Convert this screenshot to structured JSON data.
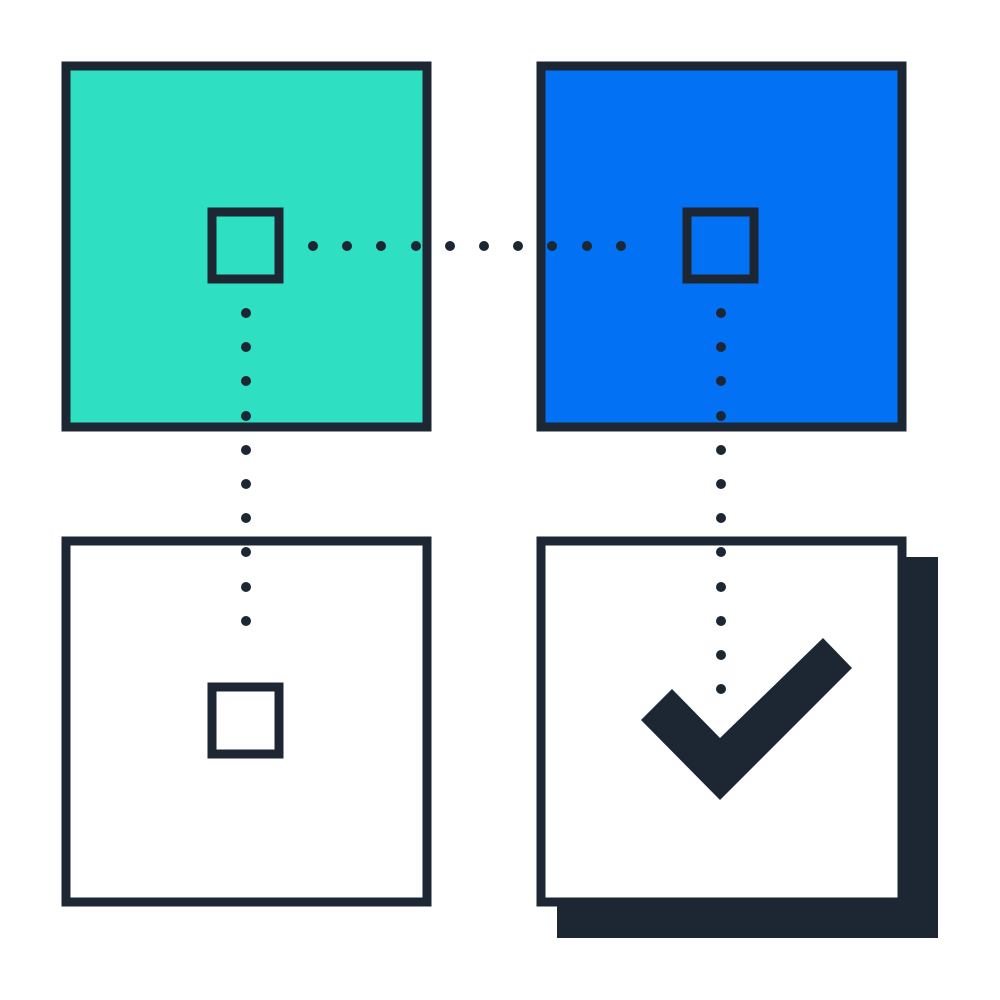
{
  "diagram": {
    "description_icon": "data-mapping-check-icon",
    "colors": {
      "background": "#ffffff",
      "outline": "#1c2733",
      "teal": "#2ee0c1",
      "blue": "#0371f3",
      "white": "#ffffff",
      "dot": "#1c2733"
    },
    "tiles": [
      {
        "name": "tile-teal-top-left",
        "fill_key": "teal"
      },
      {
        "name": "tile-blue-top-right",
        "fill_key": "blue"
      },
      {
        "name": "tile-white-bottom-left",
        "fill_key": "white"
      },
      {
        "name": "tile-white-bottom-right-checked",
        "fill_key": "white"
      }
    ],
    "connectors": [
      {
        "name": "connector-teal-to-blue",
        "from": "tile-teal-top-left",
        "to": "tile-blue-top-right",
        "style": "dotted"
      },
      {
        "name": "connector-teal-to-bottom-left",
        "from": "tile-teal-top-left",
        "to": "tile-white-bottom-left",
        "style": "dotted"
      },
      {
        "name": "connector-blue-to-check",
        "from": "tile-blue-top-right",
        "to": "tile-white-bottom-right-checked",
        "style": "dotted"
      }
    ],
    "check_icon": "checkmark-icon"
  }
}
